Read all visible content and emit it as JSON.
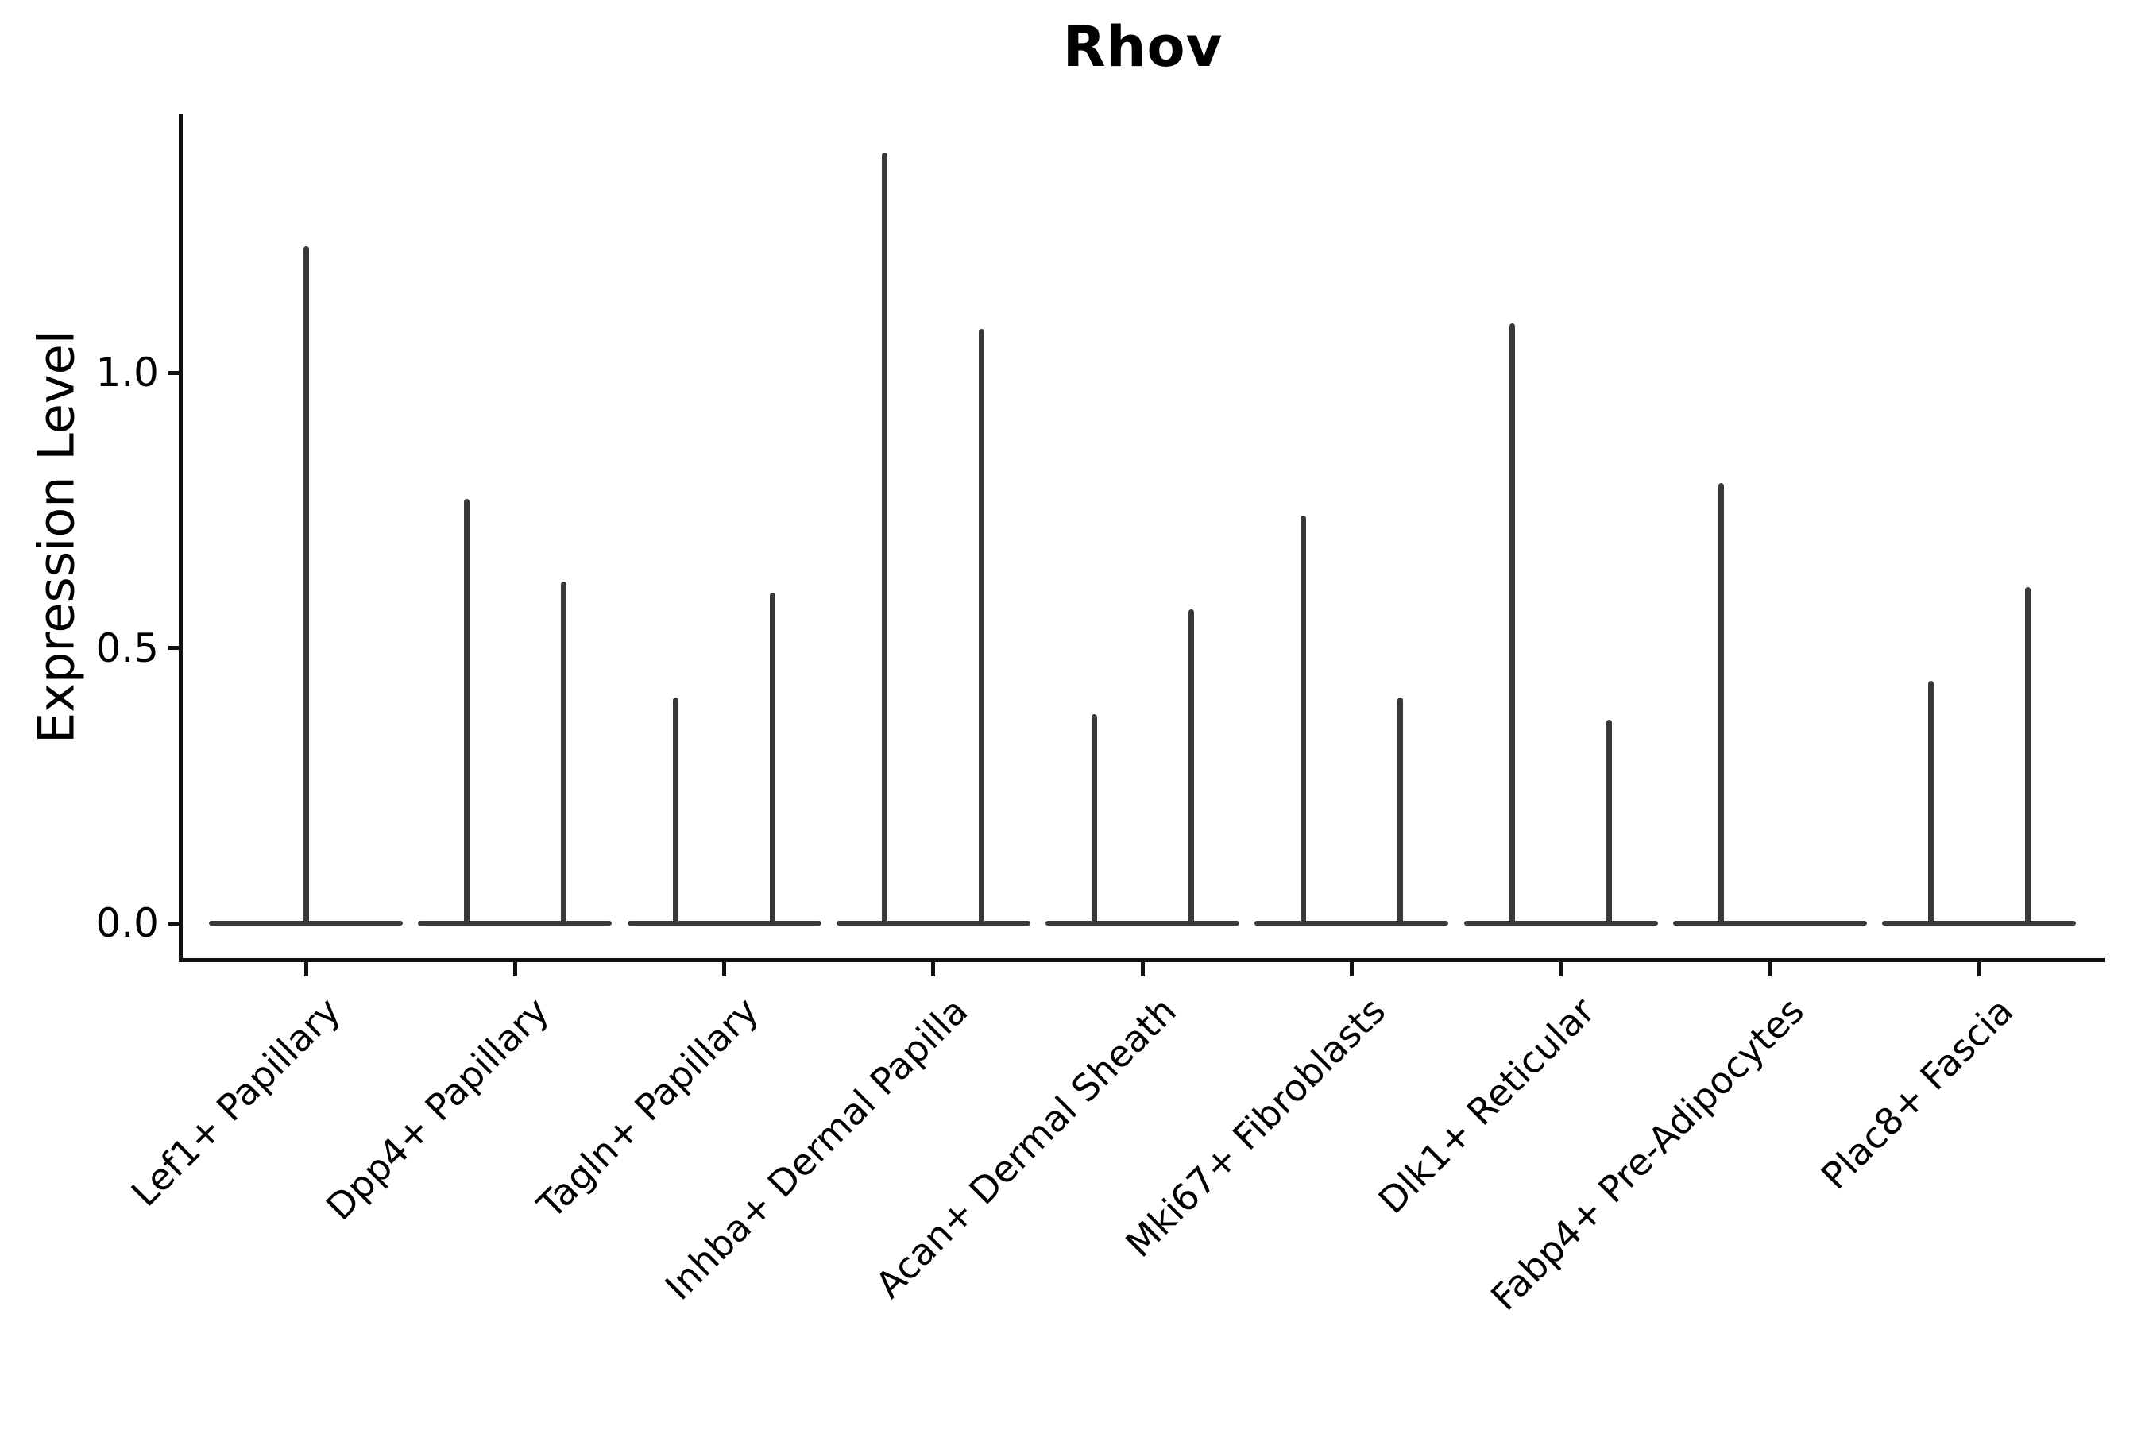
{
  "chart_data": {
    "type": "violin",
    "title": "Rhov",
    "ylabel": "Expression Level",
    "xlabel": "",
    "ylim": [
      0,
      1.47
    ],
    "yticks": [
      {
        "label": "0.0",
        "value": 0.0
      },
      {
        "label": "0.5",
        "value": 0.5
      },
      {
        "label": "1.0",
        "value": 1.0
      }
    ],
    "grid": "off",
    "legend": "none",
    "categories": [
      "Lef1+ Papillary",
      "Dpp4+ Papillary",
      "Tagln+ Papillary",
      "Inhba+ Dermal Papilla",
      "Acan+ Dermal Sheath",
      "Mki67+ Fibroblasts",
      "Dlk1+ Reticular",
      "Fabp4+ Pre-Adipocytes",
      "Plac8+ Fascia"
    ],
    "groups": [
      {
        "category": "Lef1+ Papillary",
        "violins": [
          {
            "position": "full",
            "max_expression": 1.23
          }
        ]
      },
      {
        "category": "Dpp4+ Papillary",
        "violins": [
          {
            "position": "left",
            "max_expression": 0.77
          },
          {
            "position": "right",
            "max_expression": 0.62
          }
        ]
      },
      {
        "category": "Tagln+ Papillary",
        "violins": [
          {
            "position": "left",
            "max_expression": 0.41
          },
          {
            "position": "right",
            "max_expression": 0.6
          }
        ]
      },
      {
        "category": "Inhba+ Dermal Papilla",
        "violins": [
          {
            "position": "left",
            "max_expression": 1.4
          },
          {
            "position": "right",
            "max_expression": 1.08
          }
        ]
      },
      {
        "category": "Acan+ Dermal Sheath",
        "violins": [
          {
            "position": "left",
            "max_expression": 0.38
          },
          {
            "position": "right",
            "max_expression": 0.57
          }
        ]
      },
      {
        "category": "Mki67+ Fibroblasts",
        "violins": [
          {
            "position": "left",
            "max_expression": 0.74
          },
          {
            "position": "right",
            "max_expression": 0.41
          }
        ]
      },
      {
        "category": "Dlk1+ Reticular",
        "violins": [
          {
            "position": "left",
            "max_expression": 1.09
          },
          {
            "position": "right",
            "max_expression": 0.37
          }
        ]
      },
      {
        "category": "Fabp4+ Pre-Adipocytes",
        "violins": [
          {
            "position": "left",
            "max_expression": 0.8
          },
          {
            "position": "right",
            "max_expression": 0.0
          }
        ]
      },
      {
        "category": "Plac8+ Fascia",
        "violins": [
          {
            "position": "left",
            "max_expression": 0.44
          },
          {
            "position": "right",
            "max_expression": 0.61
          }
        ]
      }
    ],
    "colors": {
      "violin_line": "#3a3a3a",
      "axis": "#111111",
      "text": "#000000",
      "background": "#ffffff"
    }
  }
}
